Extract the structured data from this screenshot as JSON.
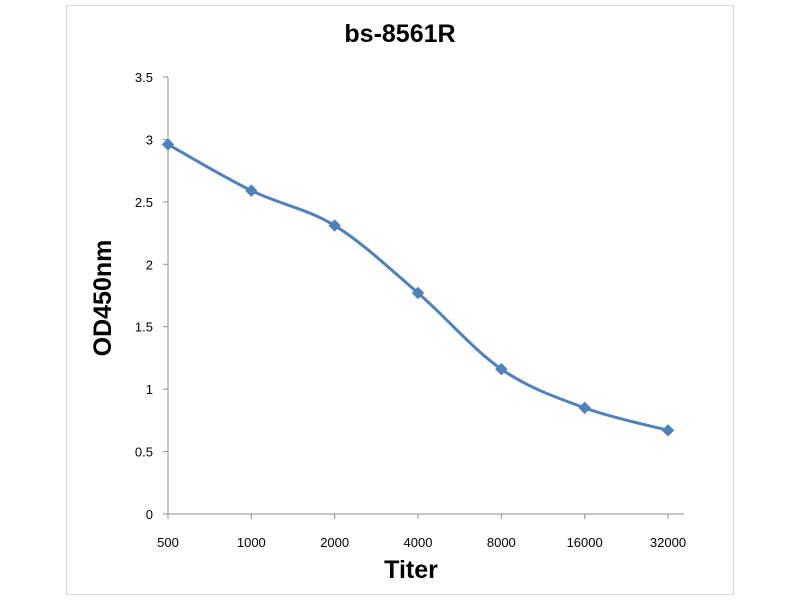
{
  "chart_data": {
    "type": "line",
    "title": "bs-8561R",
    "xlabel": "Titer",
    "ylabel": "OD450nm",
    "categories": [
      "500",
      "1000",
      "2000",
      "4000",
      "8000",
      "16000",
      "32000"
    ],
    "series": [
      {
        "values": [
          2.96,
          2.59,
          2.31,
          1.77,
          1.16,
          0.85,
          0.67
        ],
        "color": "#4f81bd"
      }
    ],
    "yticks": [
      "0",
      "0.5",
      "1",
      "1.5",
      "2",
      "2.5",
      "3",
      "3.5"
    ],
    "ylim": [
      0,
      3.5
    ],
    "grid": false,
    "legend": "none",
    "marker": "diamond"
  }
}
